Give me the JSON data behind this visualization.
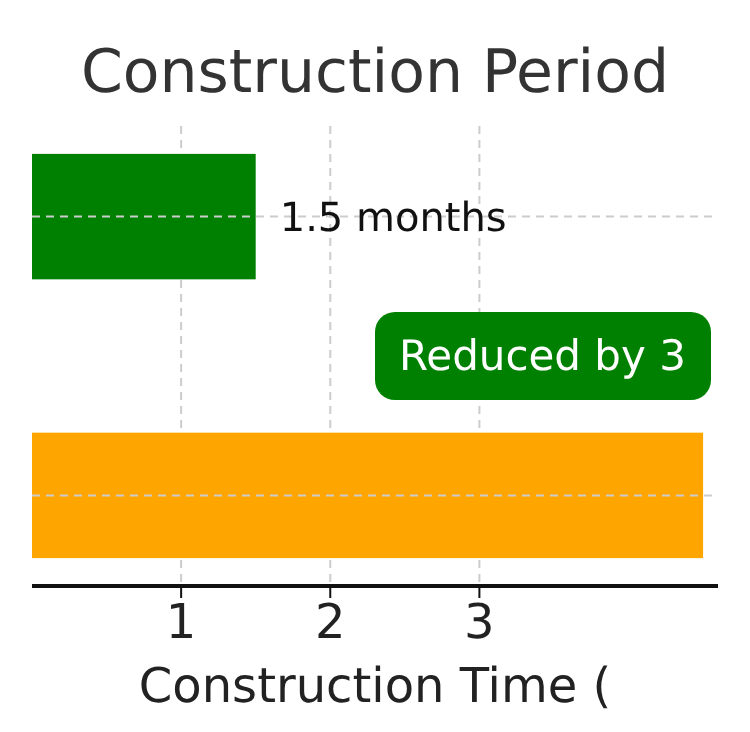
{
  "chart_data": {
    "type": "bar",
    "orientation": "horizontal",
    "title": "Construction Period",
    "xlabel": "Construction Time (",
    "categories": [
      null,
      null
    ],
    "values": [
      1.5,
      4.5
    ],
    "colors": [
      "#008000",
      "#ffa500"
    ],
    "value_labels": [
      "1.5 months",
      null
    ],
    "annotations": [
      "Reduced by 3"
    ],
    "xlim": [
      0,
      4.6
    ],
    "xticks": [
      1,
      2,
      3
    ],
    "grid": true
  }
}
